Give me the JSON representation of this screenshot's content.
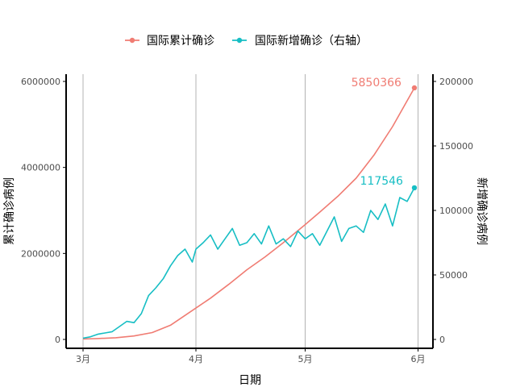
{
  "colors": {
    "cumulative": "#F07C73",
    "daily": "#17BEC4",
    "grid": "#B3B3B3",
    "axis": "#000000"
  },
  "legend": {
    "items": [
      {
        "label": "国际累计确诊",
        "color": "#F07C73"
      },
      {
        "label": "国际新增确诊（右轴）",
        "color": "#17BEC4"
      }
    ],
    "position": "top"
  },
  "chart_data": {
    "type": "line",
    "xlabel": "日期",
    "ylabel_left": "累计确诊病例",
    "ylabel_right": "新增确诊病例",
    "x_ticks": [
      "3月",
      "4月",
      "5月",
      "6月"
    ],
    "x_tick_dates": [
      "03-01",
      "04-01",
      "05-01",
      "06-01"
    ],
    "ylim_left": [
      0,
      6000000
    ],
    "yticks_left": [
      "0",
      "2000000",
      "4000000",
      "6000000"
    ],
    "ylim_right": [
      0,
      200000
    ],
    "yticks_right": [
      "0",
      "50000",
      "100000",
      "150000",
      "200000"
    ],
    "grid": "vertical major only",
    "end_labels": {
      "cumulative": "5850366",
      "daily": "117546"
    },
    "series": [
      {
        "name": "国际累计确诊",
        "axis": "left",
        "x": [
          "03-01",
          "03-05",
          "03-10",
          "03-15",
          "03-20",
          "03-25",
          "04-01",
          "04-05",
          "04-10",
          "04-15",
          "04-20",
          "04-25",
          "05-01",
          "05-05",
          "05-10",
          "05-15",
          "05-20",
          "05-25",
          "05-31"
        ],
        "values": [
          10000,
          20000,
          40000,
          80000,
          160000,
          330000,
          730000,
          960000,
          1280000,
          1620000,
          1920000,
          2250000,
          2670000,
          2960000,
          3330000,
          3750000,
          4300000,
          4950000,
          5850366
        ]
      },
      {
        "name": "国际新增确诊（右轴）",
        "axis": "right",
        "x": [
          "03-01",
          "03-03",
          "03-05",
          "03-07",
          "03-09",
          "03-11",
          "03-13",
          "03-15",
          "03-17",
          "03-19",
          "03-21",
          "03-23",
          "03-25",
          "03-27",
          "03-29",
          "03-31",
          "04-01",
          "04-03",
          "04-05",
          "04-07",
          "04-09",
          "04-11",
          "04-13",
          "04-15",
          "04-17",
          "04-19",
          "04-21",
          "04-23",
          "04-25",
          "04-27",
          "04-29",
          "05-01",
          "05-03",
          "05-05",
          "05-07",
          "05-09",
          "05-11",
          "05-13",
          "05-15",
          "05-17",
          "05-19",
          "05-21",
          "05-23",
          "05-25",
          "05-27",
          "05-29",
          "05-31"
        ],
        "values": [
          1000,
          2000,
          4000,
          5000,
          6000,
          10000,
          14000,
          13000,
          20000,
          34000,
          40000,
          47000,
          57000,
          65000,
          70000,
          60000,
          70000,
          75000,
          81000,
          70000,
          78000,
          86000,
          73000,
          75000,
          82000,
          74000,
          88000,
          74000,
          78000,
          72000,
          84000,
          78000,
          82000,
          73000,
          84000,
          95000,
          76000,
          86000,
          88000,
          83000,
          100000,
          93000,
          105000,
          88000,
          110000,
          107000,
          117546
        ]
      }
    ]
  }
}
